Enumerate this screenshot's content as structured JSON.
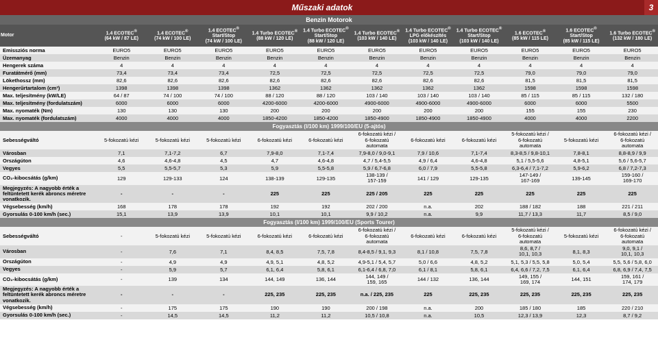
{
  "header": {
    "title": "Műszaki adatok",
    "page": "3"
  },
  "subheader": "Benzin Motorok",
  "row_label_head": "Motor",
  "columns": [
    "1.4 ECOTEC®\n(64 kW / 87 LE)",
    "1.4 ECOTEC®\n(74 kW / 100 LE)",
    "1.4 ECOTEC®\nStart/Stop\n(74 kW / 100 LE)",
    "1.4 Turbo ECOTEC®\n(88 kW / 120 LE)",
    "1.4 Turbo ECOTEC®\nStart/Stop\n(88 kW / 120 LE)",
    "1.4 Turbo ECOTEC®\n(103 kW / 140 LE)",
    "1.4 Turbo ECOTEC®\nLPG előkészítés\n(103 kW / 140 LE)",
    "1.4 Turbo ECOTEC®\nStart/Stop\n(103 kW / 140 LE)",
    "1.6 ECOTEC®\n(85 kW / 115 LE)",
    "1.6 ECOTEC®\nStart/Stop\n(85 kW / 115 LE)",
    "1.6 Turbo ECOTEC®\n(132 kW / 180 LE)"
  ],
  "block1_rows": [
    {
      "h": "Emissziós norma",
      "v": [
        "EURO5",
        "EURO5",
        "EURO5",
        "EURO5",
        "EURO5",
        "EURO5",
        "EURO5",
        "EURO5",
        "EURO5",
        "EURO5",
        "EURO5"
      ]
    },
    {
      "h": "Üzemanyag",
      "v": [
        "Benzin",
        "Benzin",
        "Benzin",
        "Benzin",
        "Benzin",
        "Benzin",
        "Benzin",
        "Benzin",
        "Benzin",
        "Benzin",
        "Benzin"
      ]
    },
    {
      "h": "Hengerek száma",
      "v": [
        "4",
        "4",
        "4",
        "4",
        "4",
        "4",
        "4",
        "4",
        "4",
        "4",
        "4"
      ]
    },
    {
      "h": "Furatátmérő (mm)",
      "v": [
        "73,4",
        "73,4",
        "73,4",
        "72,5",
        "72,5",
        "72,5",
        "72,5",
        "72,5",
        "79,0",
        "79,0",
        "79,0"
      ]
    },
    {
      "h": "Lökethossz (mm)",
      "v": [
        "82,6",
        "82,6",
        "82,6",
        "82,6",
        "82,6",
        "82,6",
        "82,6",
        "82,6",
        "81,5",
        "81,5",
        "81,5"
      ]
    },
    {
      "h": "Hengerűrtartalom (cm³)",
      "v": [
        "1398",
        "1398",
        "1398",
        "1362",
        "1362",
        "1362",
        "1362",
        "1362",
        "1598",
        "1598",
        "1598"
      ]
    },
    {
      "h": "Max. teljesítmény (kW/LE)",
      "v": [
        "64 / 87",
        "74 / 100",
        "74 / 100",
        "88 / 120",
        "88 / 120",
        "103 / 140",
        "103 / 140",
        "103 / 140",
        "85 / 115",
        "85 / 115",
        "132 / 180"
      ]
    },
    {
      "h": "Max. teljesítmény (fordulatszám)",
      "v": [
        "6000",
        "6000",
        "6000",
        "4200-6000",
        "4200-6000",
        "4900-6000",
        "4900-6000",
        "4900-6000",
        "6000",
        "6000",
        "5500"
      ]
    },
    {
      "h": "Max. nyomaték (Nm)",
      "v": [
        "130",
        "130",
        "130",
        "200",
        "200",
        "200",
        "200",
        "200",
        "155",
        "155",
        "230"
      ]
    },
    {
      "h": "Max. nyomaték (fordulatszám)",
      "v": [
        "4000",
        "4000",
        "4000",
        "1850-4200",
        "1850-4200",
        "1850-4900",
        "1850-4900",
        "1850-4900",
        "4000",
        "4000",
        "2200"
      ]
    }
  ],
  "section2_title": "Fogyasztás (l/100 km) 1999/100/EU (5-ajtós)",
  "block2_rows": [
    {
      "h": "Sebességváltó",
      "v": [
        "5-fokozatú kézi",
        "5-fokozatú kézi",
        "5-fokozatú kézi",
        "6-fokozatú kézi",
        "6-fokozatú kézi",
        "6-fokozatú kézi /\n6-fokozatú\nautomata",
        "6-fokozatú kézi",
        "6-fokozatú kézi",
        "5-fokozatú kézi /\n6-fokozatú\nautomata",
        "5-fokozatú kézi",
        "6-fokozatú kézi /\n6-fokozatú\nautomata"
      ]
    },
    {
      "h": "Városban",
      "v": [
        "7,1",
        "7,1-7,2",
        "6,7",
        "7,9-8,0",
        "7,1-7,4",
        "7,9-8,0 / 9,0-9,1",
        "7,9 / 10,6",
        "7,1-7,4",
        "8,3-8,5 / 9,8-10,1",
        "7,8-8,1",
        "8,8-8,9 / 9,9"
      ]
    },
    {
      "h": "Országúton",
      "v": [
        "4,6",
        "4,6-4,8",
        "4,5",
        "4,7",
        "4,6-4,8",
        "4,7 / 5,4-5,5",
        "4,9 / 6,4",
        "4,6-4,8",
        "5,1 / 5,5-5,6",
        "4,8-5,1",
        "5,6 / 5,6-5,7"
      ]
    },
    {
      "h": "Vegyes",
      "v": [
        "5,5",
        "5,5-5,7",
        "5,3",
        "5,9",
        "5,5-5,8",
        "5,9 / 6,7-6,8",
        "6,0 / 7,9",
        "5,5-5,8",
        "6,3-6,4 / 7,1-7,2",
        "5,9-6,2",
        "6,8 / 7,2-7,3"
      ]
    },
    {
      "h": "CO₂-kibocsátás (g/km)",
      "v": [
        "129",
        "129-133",
        "124",
        "138-139",
        "129-135",
        "138-139 /\n157-159",
        "141 / 129",
        "129-135",
        "147-149 /\n167-169",
        "139-145",
        "159-160 /\n169-170"
      ]
    },
    {
      "h": "Megjegyzés: A nagyobb érték a feltüntetett kerék abroncs méretre vonatkozik.",
      "note": true,
      "v": [
        "-",
        "-",
        "-",
        "225",
        "225",
        "225 / 205",
        "225",
        "225",
        "225",
        "225",
        "225"
      ]
    },
    {
      "h": "Végsebesség (km/h)",
      "v": [
        "168",
        "178",
        "178",
        "192",
        "192",
        "202 / 200",
        "n.a.",
        "202",
        "188 / 182",
        "188",
        "221 / 211"
      ]
    },
    {
      "h": "Gyorsulás 0-100 km/h (sec.)",
      "v": [
        "15,1",
        "13,9",
        "13,9",
        "10,1",
        "10,1",
        "9,9 / 10,2",
        "n.a.",
        "9,9",
        "11,7 / 13,3",
        "11,7",
        "8,5 / 9,0"
      ]
    }
  ],
  "section3_title": "Fogyasztás (l/100 km) 1999/100/EU (Sports Tourer)",
  "block3_rows": [
    {
      "h": "Sebességváltó",
      "v": [
        "-",
        "5-fokozatú kézi",
        "5-fokozatú kézi",
        "6-fokozatú kézi",
        "6-fokozatú kézi",
        "6-fokozatú kézi /\n6-fokozatú\nautomata",
        "6-fokozatú kézi",
        "6-fokozatú kézi",
        "5-fokozatú kézi /\n6-fokozatú\nautomata",
        "5-fokozatú kézi",
        "6-fokozatú kézi /\n6-fokozatú\nautomata"
      ]
    },
    {
      "h": "Városban",
      "v": [
        "-",
        "7,6",
        "7,1",
        "8,4, 8,5",
        "7,5, 7,8",
        "8,4-8,5 / 9,1, 9,3",
        "8,1 / 10,8",
        "7,5, 7,8",
        "8,6, 8,7 /\n10,1, 10,3",
        "8,1, 8,3",
        "9,0, 9,1 /\n10,1, 10,3"
      ]
    },
    {
      "h": "Országúton",
      "v": [
        "-",
        "4,9",
        "4,9",
        "4,9, 5,1",
        "4,8, 5,2",
        "4,9-5,1 / 5,4, 5,7",
        "5,0 / 6,6",
        "4,8, 5,2",
        "5,1, 5,3 / 5,5, 5,8",
        "5,0, 5,4",
        "5,5, 5,6 / 5,8, 6,0"
      ]
    },
    {
      "h": "Vegyes",
      "v": [
        "-",
        "5,9",
        "5,7",
        "6,1, 6,4",
        "5,8, 6,1",
        "6,1-6,4 / 6,8, 7,0",
        "6,1 / 8,1",
        "5,8, 6,1",
        "6,4, 6,6 / 7,2, 7,5",
        "6,1, 6,4",
        "6,8, 6,9 / 7,4, 7,5"
      ]
    },
    {
      "h": "CO₂-kibocsátás (g/km)",
      "v": [
        "-",
        "139",
        "134",
        "144, 149",
        "136, 144",
        "144, 149 /\n159, 165",
        "144 / 132",
        "136, 144",
        "149, 155 /\n169, 174",
        "144, 151",
        "159, 161 /\n174, 179"
      ]
    },
    {
      "h": "Megjegyzés: A nagyobb érték a feltüntetett kerék abroncs méretre vonatkozik.",
      "note": true,
      "v": [
        "-",
        "-",
        "-",
        "225, 235",
        "225, 235",
        "n.a. / 225, 235",
        "225",
        "225, 235",
        "225, 235",
        "225, 235",
        "225, 235"
      ]
    },
    {
      "h": "Végsebesség (km/h)",
      "v": [
        "-",
        "175",
        "175",
        "190",
        "190",
        "200 / 198",
        "n.a.",
        "200",
        "185 / 180",
        "185",
        "220 / 210"
      ]
    },
    {
      "h": "Gyorsulás 0-100 km/h (sec.)",
      "v": [
        "-",
        "14,5",
        "14,5",
        "11,2",
        "11,2",
        "10,5 / 10,8",
        "n.a.",
        "10,5",
        "12,3 / 13,9",
        "12,3",
        "8,7 / 9,2"
      ]
    }
  ],
  "colors": {
    "header_bg": "#8b1a1a",
    "pagecell": "#a82a2a",
    "subbar": "#666666",
    "colhead": "#555555",
    "light": "#f2f2f2",
    "dark": "#d9d9d9",
    "section": "#888888"
  }
}
